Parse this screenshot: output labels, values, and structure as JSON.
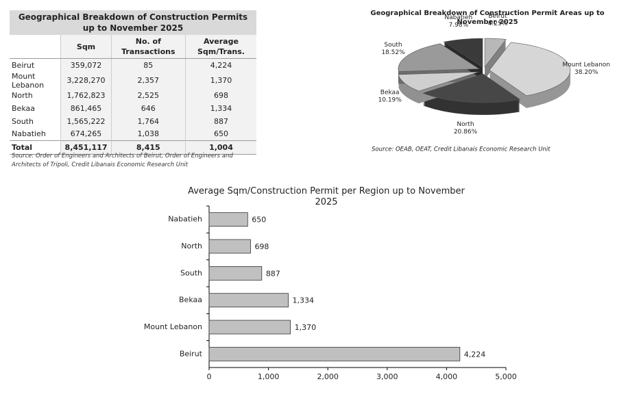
{
  "table": {
    "title": "Geographical Breakdown of Construction Permits up to November 2025",
    "headers": [
      "Sqm",
      "No. of Transactions",
      "Average Sqm/Trans."
    ],
    "rows": [
      [
        "Beirut",
        "359,072",
        "85",
        "4,224"
      ],
      [
        "Mount Lebanon",
        "3,228,270",
        "2,357",
        "1,370"
      ],
      [
        "North",
        "1,762,823",
        "2,525",
        "698"
      ],
      [
        "Bekaa",
        "861,465",
        "646",
        "1,334"
      ],
      [
        "South",
        "1,565,222",
        "1,764",
        "887"
      ],
      [
        "Nabatieh",
        "674,265",
        "1,038",
        "650"
      ]
    ],
    "total": [
      "Total",
      "8,451,117",
      "8,415",
      "1,004"
    ],
    "source": "Source: Order of Engineers and Architects of Beirut, Order of Engineers and Architects of Tripoli, Credit Libanais Economic Research Unit"
  },
  "chart_data": [
    {
      "type": "pie",
      "title": "Geographical Breakdown of Construction Permit Areas up to November 2025",
      "categories": [
        "Beirut",
        "Mount Lebanon",
        "North",
        "Bekaa",
        "South",
        "Nabatieh"
      ],
      "values": [
        4.25,
        38.2,
        20.86,
        10.19,
        18.52,
        7.98
      ],
      "value_labels": [
        "4.25%",
        "38.20%",
        "20.86%",
        "10.19%",
        "18.52%",
        "7.98%"
      ],
      "colors": [
        "#b8b8b8",
        "#d6d6d6",
        "#474747",
        "#cfcfcf",
        "#9a9a9a",
        "#3a3a3a"
      ],
      "source": "Source: OEAB, OEAT, Credit Libanais Economic Research Unit"
    },
    {
      "type": "hbar",
      "title": "Average Sqm/Construction Permit per Region up to November 2025",
      "categories": [
        "Nabatieh",
        "North",
        "South",
        "Bekaa",
        "Mount Lebanon",
        "Beirut"
      ],
      "values": [
        650,
        698,
        887,
        1334,
        1370,
        4224
      ],
      "value_labels": [
        "650",
        "698",
        "887",
        "1,334",
        "1,370",
        "4,224"
      ],
      "color": "#c0c0c0",
      "xlim": [
        0,
        5000
      ],
      "xticks": [
        0,
        {
          "value": 1000,
          "label": "1,000"
        },
        {
          "value": 2000,
          "label": "2,000"
        },
        {
          "value": 3000,
          "label": "3,000"
        },
        {
          "value": 4000,
          "label": "4,000"
        },
        {
          "value": 5000,
          "label": "5,000"
        }
      ]
    }
  ]
}
